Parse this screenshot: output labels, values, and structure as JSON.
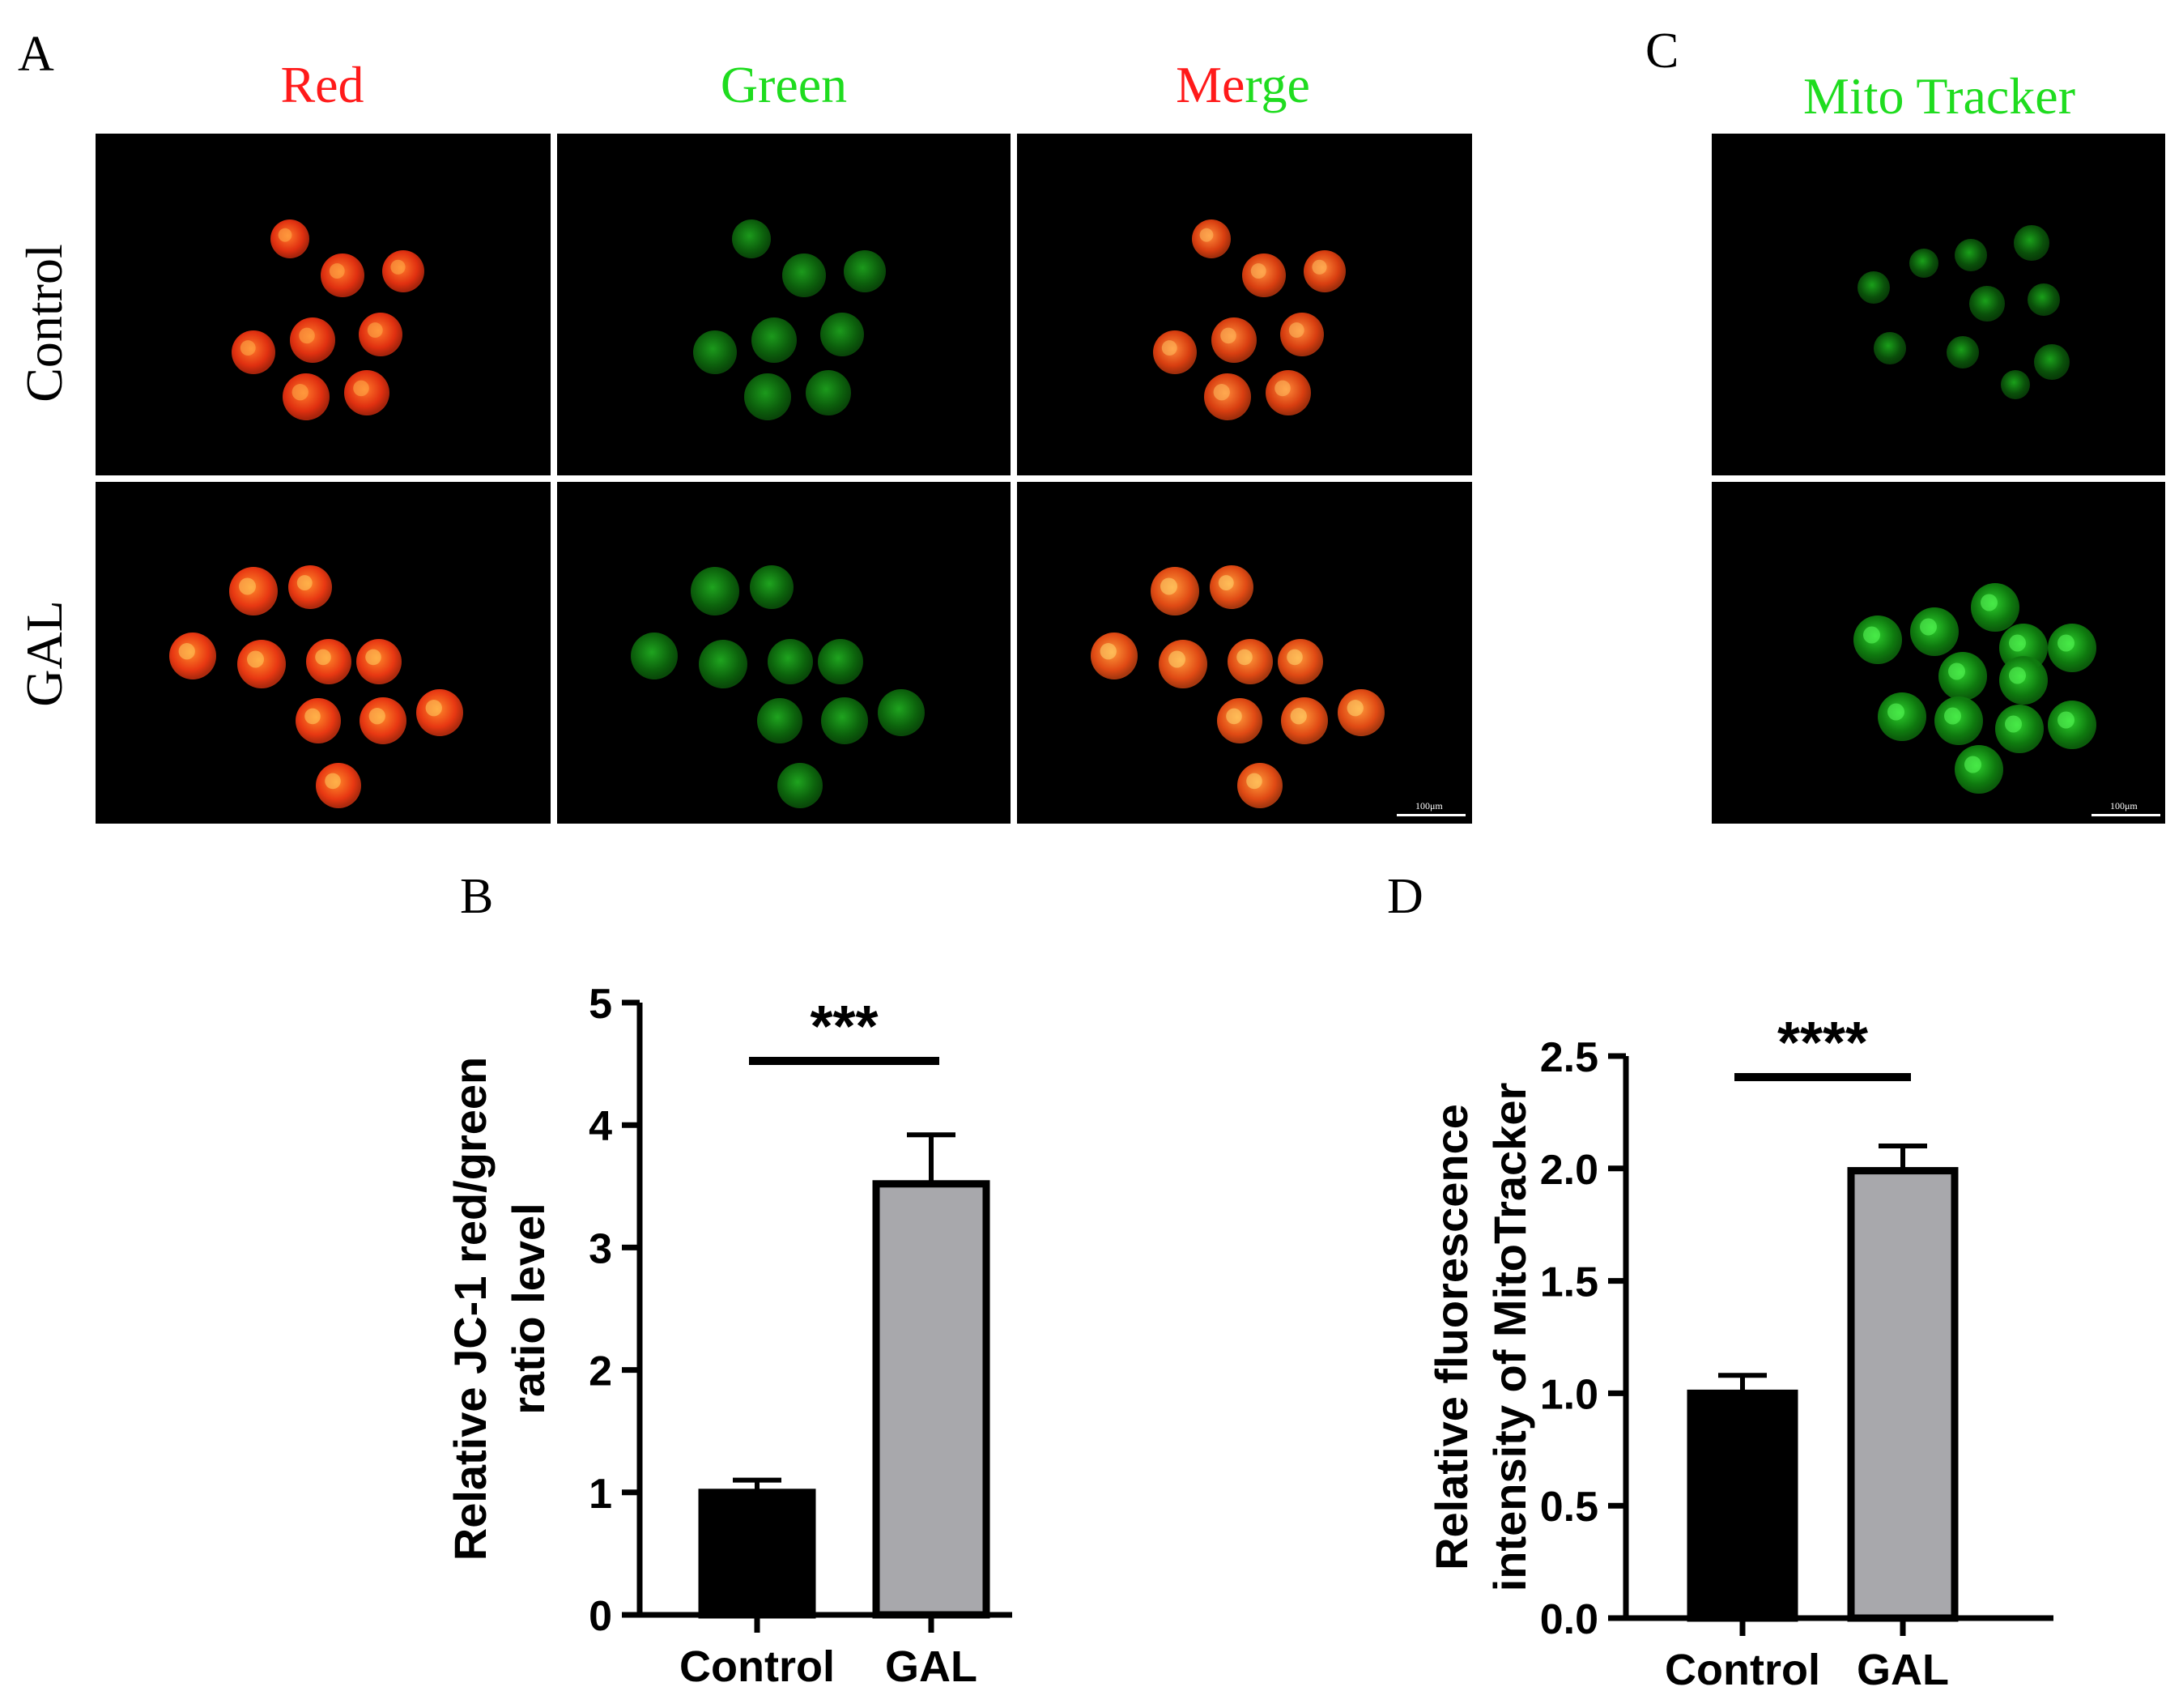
{
  "panels": {
    "A": {
      "label": "A",
      "columns": [
        {
          "label": "Red",
          "color": "#ff1a1a"
        },
        {
          "label": "Green",
          "color": "#1fdc1f"
        },
        {
          "label_parts": [
            {
              "text": "Me",
              "color": "#ff1a1a"
            },
            {
              "text": "rge",
              "color": "#1fdc1f"
            }
          ]
        }
      ],
      "rows": [
        "Control",
        "GAL"
      ],
      "scale_bar": "100μm"
    },
    "B": {
      "label": "B"
    },
    "C": {
      "label": "C",
      "title": "Mito Tracker",
      "title_color": "#1fdc1f",
      "scale_bar": "100μm"
    },
    "D": {
      "label": "D"
    }
  },
  "chart_data": [
    {
      "type": "bar",
      "panel": "B",
      "categories": [
        "Control",
        "GAL"
      ],
      "values": [
        1.0,
        3.52
      ],
      "errors": [
        0.1,
        0.4
      ],
      "bar_colors": [
        "#000000",
        "#a8a8ac"
      ],
      "ylabel": "Relative JC-1 red/green ratio level",
      "ylabel_lines": [
        "Relative JC-1 red/green",
        "ratio level"
      ],
      "ylim": [
        0,
        5
      ],
      "yticks": [
        "0",
        "1",
        "2",
        "3",
        "4",
        "5"
      ],
      "significance": "***"
    },
    {
      "type": "bar",
      "panel": "D",
      "categories": [
        "Control",
        "GAL"
      ],
      "values": [
        1.0,
        1.99
      ],
      "errors": [
        0.08,
        0.11
      ],
      "bar_colors": [
        "#000000",
        "#a8a8ac"
      ],
      "ylabel": "Relative fluorescence intensity of MitoTracker",
      "ylabel_lines": [
        "Relative fluorescence",
        "intensity of MitoTracker"
      ],
      "ylim": [
        0,
        2.5
      ],
      "yticks": [
        "0.0",
        "0.5",
        "1.0",
        "1.5",
        "2.0",
        "2.5"
      ],
      "significance": "****"
    }
  ]
}
